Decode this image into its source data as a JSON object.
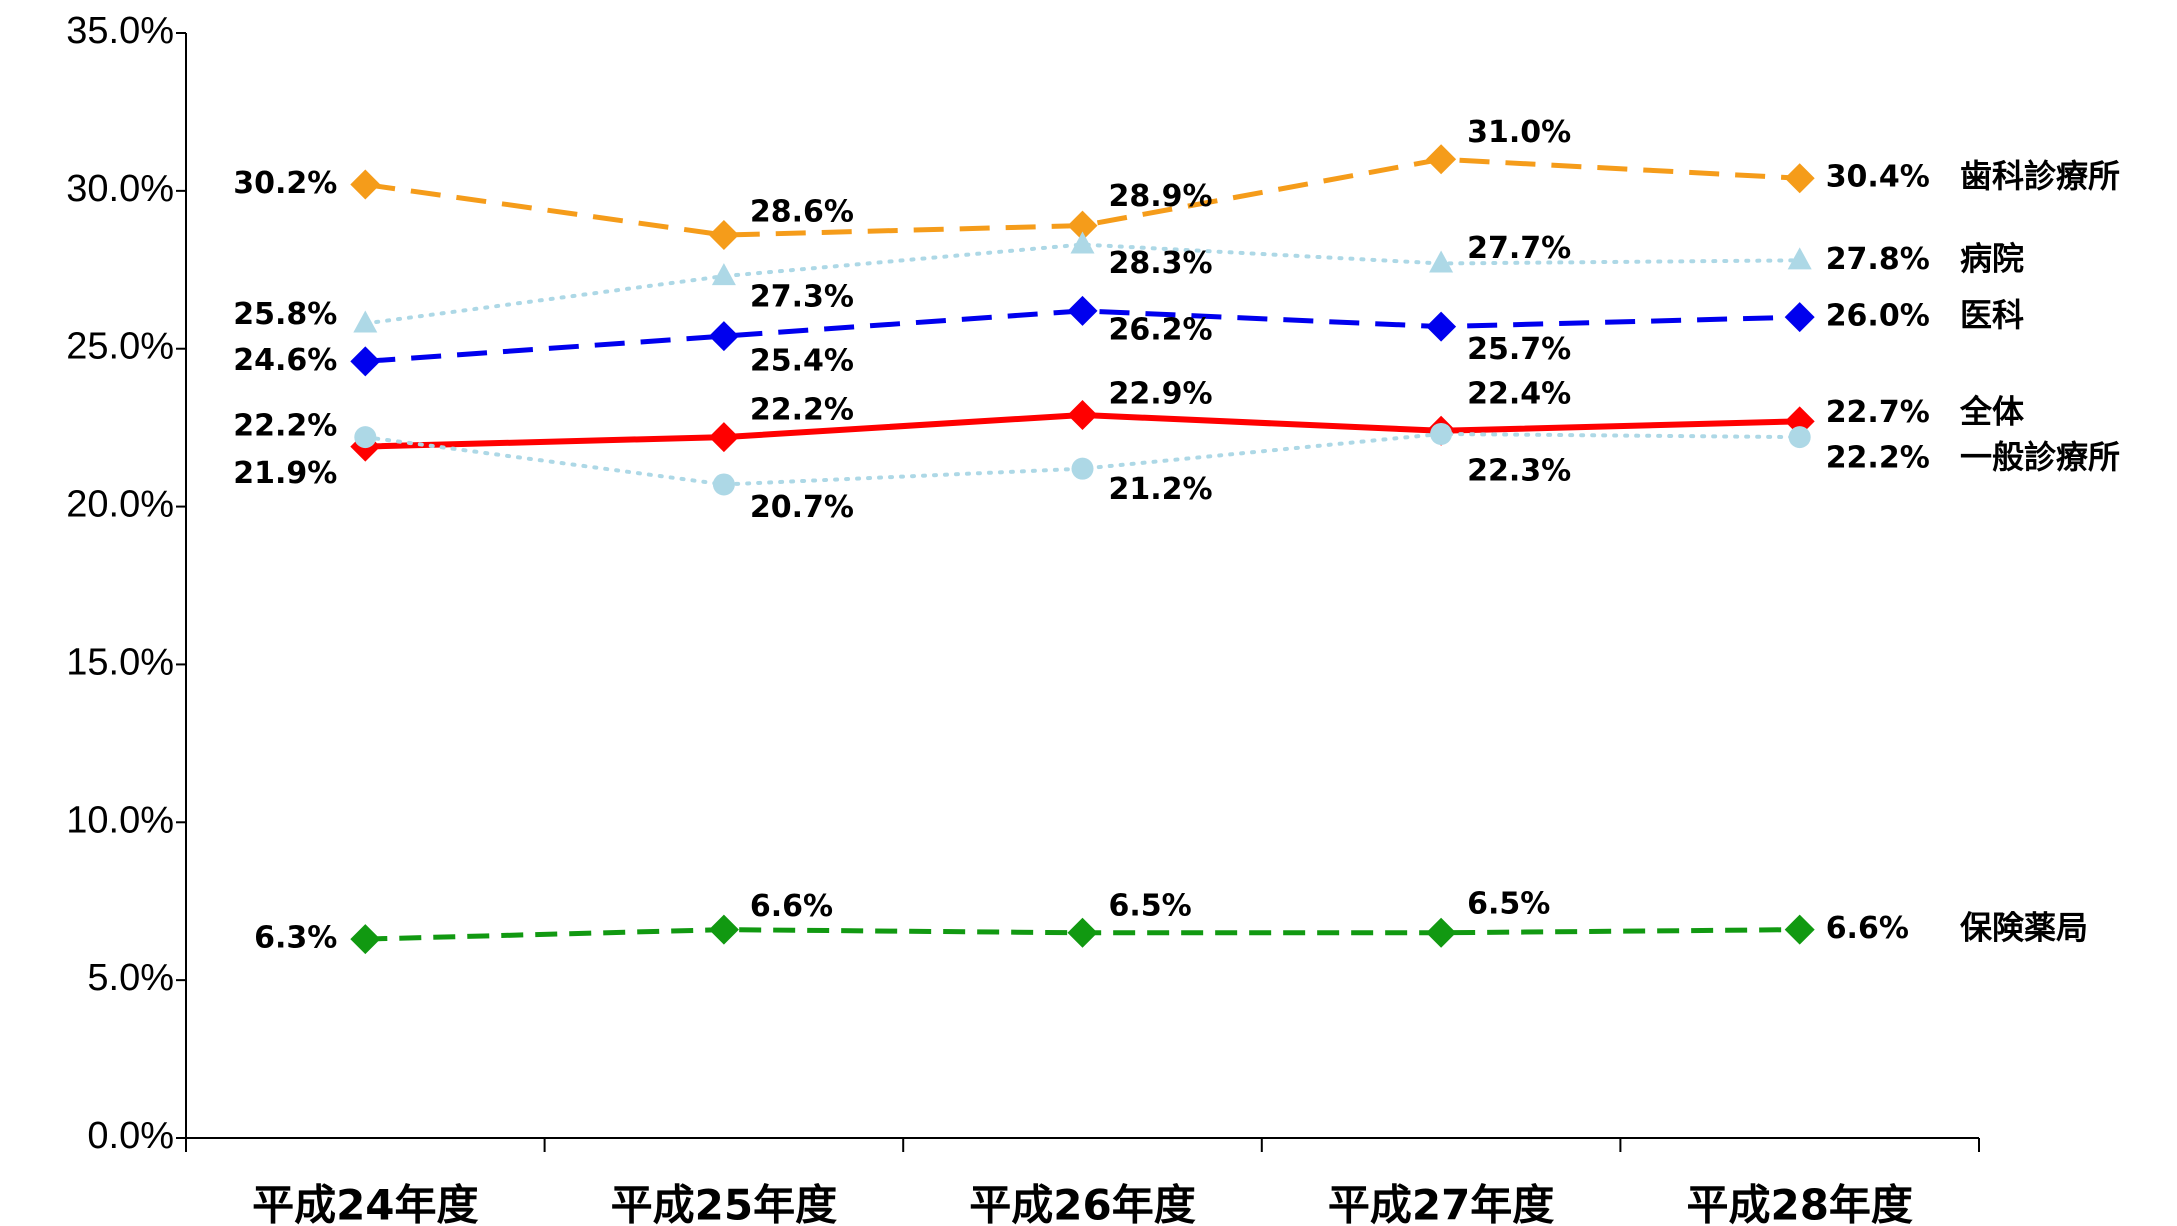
{
  "chart_data": {
    "type": "line",
    "categories": [
      "平成24年度",
      "平成25年度",
      "平成26年度",
      "平成27年度",
      "平成28年度"
    ],
    "series": [
      {
        "name": "歯科診療所",
        "color": "#f59c1a",
        "values": [
          30.2,
          28.6,
          28.9,
          31.0,
          30.4
        ],
        "value_labels": [
          "30.2%",
          "28.6%",
          "28.9%",
          "31.0%",
          "30.4%"
        ]
      },
      {
        "name": "病院",
        "color": "#add8e6",
        "values": [
          25.8,
          27.3,
          28.3,
          27.7,
          27.8
        ],
        "value_labels": [
          "25.8%",
          "27.3%",
          "28.3%",
          "27.7%",
          "27.8%"
        ]
      },
      {
        "name": "医科",
        "color": "#0000ee",
        "values": [
          24.6,
          25.4,
          26.2,
          25.7,
          26.0
        ],
        "value_labels": [
          "24.6%",
          "25.4%",
          "26.2%",
          "25.7%",
          "26.0%"
        ]
      },
      {
        "name": "全体",
        "color": "#ff0000",
        "values": [
          21.9,
          22.2,
          22.9,
          22.4,
          22.7
        ],
        "value_labels": [
          "21.9%",
          "22.2%",
          "22.9%",
          "22.4%",
          "22.7%"
        ]
      },
      {
        "name": "一般診療所",
        "color": "#add8e6",
        "values": [
          22.2,
          20.7,
          21.2,
          22.3,
          22.2
        ],
        "value_labels": [
          "22.2%",
          "20.7%",
          "21.2%",
          "22.3%",
          "22.2%"
        ]
      },
      {
        "name": "保険薬局",
        "color": "#119911",
        "values": [
          6.3,
          6.6,
          6.5,
          6.5,
          6.6
        ],
        "value_labels": [
          "6.3%",
          "6.6%",
          "6.5%",
          "6.5%",
          "6.6%"
        ]
      }
    ],
    "ylim": [
      0,
      35
    ],
    "yticks": [
      {
        "value": 0,
        "label": "0.0%"
      },
      {
        "value": 5,
        "label": "5.0%"
      },
      {
        "value": 10,
        "label": "10.0%"
      },
      {
        "value": 15,
        "label": "15.0%"
      },
      {
        "value": 20,
        "label": "20.0%"
      },
      {
        "value": 25,
        "label": "25.0%"
      },
      {
        "value": 30,
        "label": "30.0%"
      },
      {
        "value": 35,
        "label": "35.0%"
      }
    ],
    "grid": false
  }
}
